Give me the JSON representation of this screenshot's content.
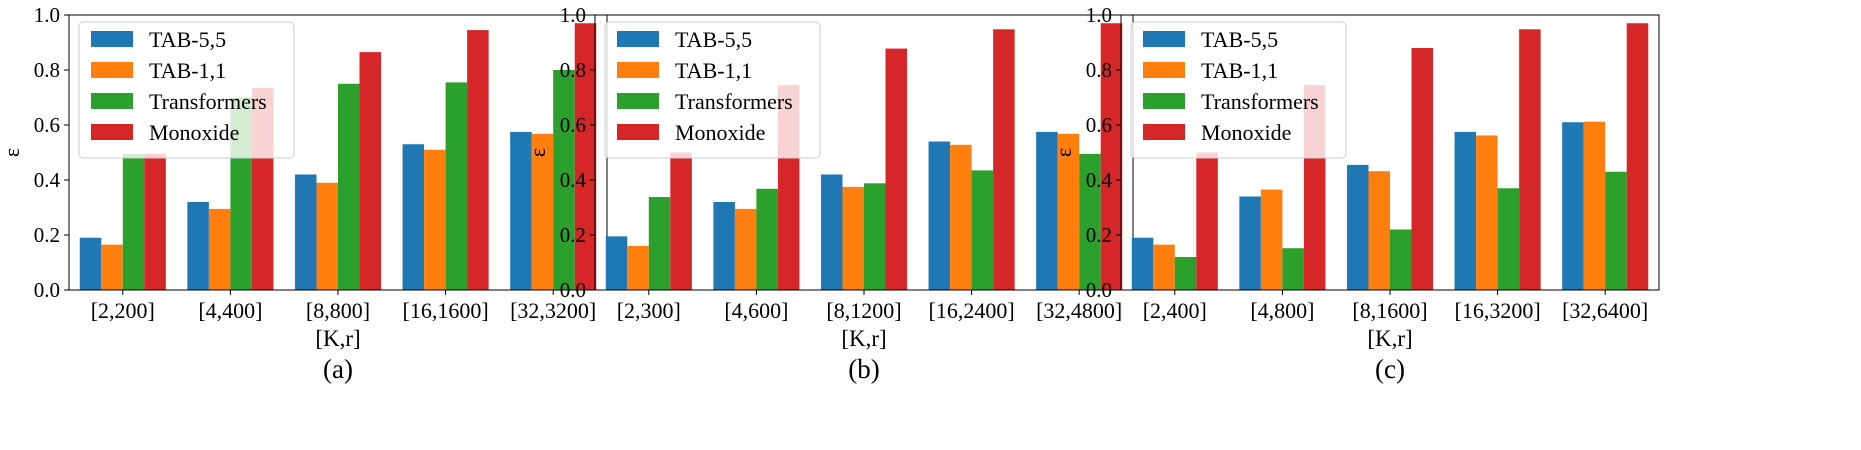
{
  "legend": [
    {
      "name": "TAB-5,5",
      "color": "#1f77b4"
    },
    {
      "name": "TAB-1,1",
      "color": "#ff7f0e"
    },
    {
      "name": "Transformers",
      "color": "#2ca02c"
    },
    {
      "name": "Monoxide",
      "color": "#d62728"
    }
  ],
  "chart_data": [
    {
      "type": "bar",
      "panel_label": "(a)",
      "xlabel": "[K,r]",
      "ylabel": "ε",
      "ylim": [
        0,
        1.0
      ],
      "yticks": [
        "0.0",
        "0.2",
        "0.4",
        "0.6",
        "0.8",
        "1.0"
      ],
      "grid": false,
      "legend_position": "top-left",
      "categories": [
        "[2,200]",
        "[4,400]",
        "[8,800]",
        "[16,1600]",
        "[32,3200]"
      ],
      "series": [
        {
          "name": "TAB-5,5",
          "values": [
            0.19,
            0.32,
            0.42,
            0.53,
            0.575
          ]
        },
        {
          "name": "TAB-1,1",
          "values": [
            0.165,
            0.295,
            0.39,
            0.51,
            0.568
          ]
        },
        {
          "name": "Transformers",
          "values": [
            0.495,
            0.7,
            0.75,
            0.755,
            0.8
          ]
        },
        {
          "name": "Monoxide",
          "values": [
            0.495,
            0.735,
            0.865,
            0.945,
            0.97
          ]
        }
      ]
    },
    {
      "type": "bar",
      "panel_label": "(b)",
      "xlabel": "[K,r]",
      "ylabel": "ε",
      "ylim": [
        0,
        1.0
      ],
      "yticks": [
        "0.0",
        "0.2",
        "0.4",
        "0.6",
        "0.8",
        "1.0"
      ],
      "grid": false,
      "legend_position": "top-left",
      "categories": [
        "[2,300]",
        "[4,600]",
        "[8,1200]",
        "[16,2400]",
        "[32,4800]"
      ],
      "series": [
        {
          "name": "TAB-5,5",
          "values": [
            0.195,
            0.32,
            0.42,
            0.54,
            0.575
          ]
        },
        {
          "name": "TAB-1,1",
          "values": [
            0.16,
            0.295,
            0.375,
            0.528,
            0.568
          ]
        },
        {
          "name": "Transformers",
          "values": [
            0.338,
            0.368,
            0.388,
            0.435,
            0.495
          ]
        },
        {
          "name": "Monoxide",
          "values": [
            0.5,
            0.745,
            0.878,
            0.948,
            0.97
          ]
        }
      ]
    },
    {
      "type": "bar",
      "panel_label": "(c)",
      "xlabel": "[K,r]",
      "ylabel": "ε",
      "ylim": [
        0,
        1.0
      ],
      "yticks": [
        "0.0",
        "0.2",
        "0.4",
        "0.6",
        "0.8",
        "1.0"
      ],
      "grid": false,
      "legend_position": "top-left",
      "categories": [
        "[2,400]",
        "[4,800]",
        "[8,1600]",
        "[16,3200]",
        "[32,6400]"
      ],
      "series": [
        {
          "name": "TAB-5,5",
          "values": [
            0.19,
            0.34,
            0.455,
            0.575,
            0.61
          ]
        },
        {
          "name": "TAB-1,1",
          "values": [
            0.165,
            0.365,
            0.432,
            0.562,
            0.612
          ]
        },
        {
          "name": "Transformers",
          "values": [
            0.12,
            0.152,
            0.22,
            0.37,
            0.43
          ]
        },
        {
          "name": "Monoxide",
          "values": [
            0.5,
            0.745,
            0.88,
            0.948,
            0.97
          ]
        }
      ]
    }
  ]
}
